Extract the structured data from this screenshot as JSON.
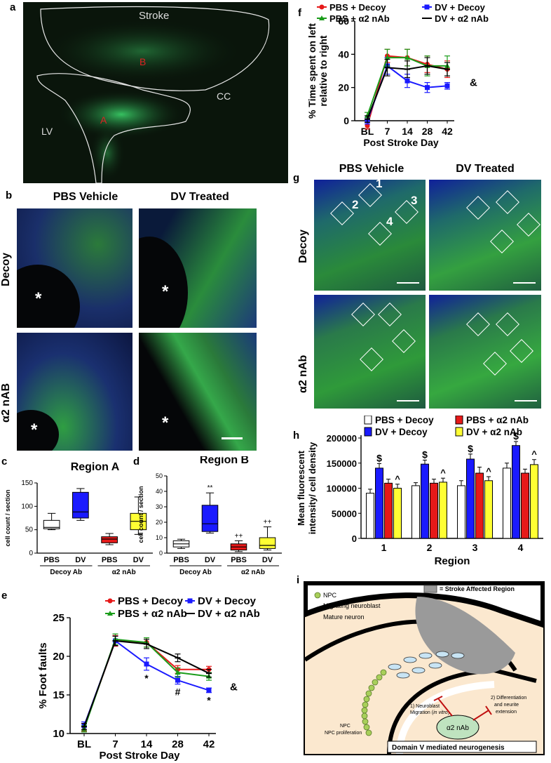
{
  "panel_labels": {
    "a": "a",
    "b": "b",
    "c": "c",
    "d": "d",
    "e": "e",
    "f": "f",
    "g": "g",
    "h": "h",
    "i": "i"
  },
  "panel_a": {
    "stroke": "Stroke",
    "region_a": "A",
    "region_b": "B",
    "cc": "CC",
    "lv": "LV"
  },
  "panel_b": {
    "col1": "PBS Vehicle",
    "col2": "DV Treated",
    "row1": "Decoy",
    "row2": "α2 nAB",
    "asterisk": "*"
  },
  "panel_g": {
    "col1": "PBS Vehicle",
    "col2": "DV Treated",
    "row1": "Decoy",
    "row2": "α2 nAb",
    "regions": [
      "1",
      "2",
      "3",
      "4"
    ]
  },
  "chart_data": [
    {
      "id": "c",
      "type": "box",
      "title": "Region A",
      "ylabel": "cell count / section",
      "ylim": [
        0,
        150
      ],
      "yticks": [
        0,
        50,
        100,
        150
      ],
      "categories": [
        "PBS",
        "DV",
        "PBS",
        "DV"
      ],
      "groups": [
        {
          "label": "Decoy Ab",
          "span": [
            0,
            1
          ]
        },
        {
          "label": "α2 nAb",
          "span": [
            2,
            3
          ]
        }
      ],
      "boxes": [
        {
          "min": 50,
          "q1": 52,
          "median": 55,
          "q3": 70,
          "max": 85,
          "color": "#ffffff"
        },
        {
          "min": 70,
          "q1": 75,
          "median": 88,
          "q3": 130,
          "max": 138,
          "color": "#1a1aff"
        },
        {
          "min": 18,
          "q1": 22,
          "median": 30,
          "q3": 35,
          "max": 42,
          "color": "#e61919"
        },
        {
          "min": 40,
          "q1": 50,
          "median": 68,
          "q3": 85,
          "max": 120,
          "color": "#ffff33"
        }
      ],
      "annotations": [
        "",
        "",
        "",
        ""
      ]
    },
    {
      "id": "d",
      "type": "box",
      "title": "Region B",
      "ylabel": "cell count / section",
      "ylim": [
        0,
        50
      ],
      "yticks": [
        0,
        10,
        20,
        30,
        40,
        50
      ],
      "categories": [
        "PBS",
        "DV",
        "PBS",
        "DV"
      ],
      "groups": [
        {
          "label": "Decoy Ab",
          "span": [
            0,
            1
          ]
        },
        {
          "label": "α2 nAb",
          "span": [
            2,
            3
          ]
        }
      ],
      "boxes": [
        {
          "min": 3,
          "q1": 4,
          "median": 6,
          "q3": 8,
          "max": 9,
          "color": "#ffffff"
        },
        {
          "min": 13,
          "q1": 14,
          "median": 19,
          "q3": 31,
          "max": 39,
          "color": "#1a1aff"
        },
        {
          "min": 1,
          "q1": 2,
          "median": 4,
          "q3": 6,
          "max": 8,
          "color": "#e61919"
        },
        {
          "min": 2,
          "q1": 3,
          "median": 5,
          "q3": 10,
          "max": 17,
          "color": "#ffff33"
        }
      ],
      "annotations": [
        "",
        "**",
        "++",
        "++"
      ]
    },
    {
      "id": "e",
      "type": "line",
      "xlabel": "Post Stroke Day",
      "ylabel": "% Foot faults",
      "x": [
        "BL",
        "7",
        "14",
        "28",
        "42"
      ],
      "ylim": [
        10,
        25
      ],
      "yticks": [
        10,
        15,
        20,
        25
      ],
      "series": [
        {
          "name": "PBS + Decoy",
          "color": "#e61919",
          "values": [
            10.8,
            22.0,
            21.8,
            18.3,
            18.3
          ],
          "err": [
            0.5,
            0.7,
            0.6,
            0.5,
            0.4
          ]
        },
        {
          "name": "DV + Decoy",
          "color": "#1a1aff",
          "values": [
            11.0,
            22.0,
            19.0,
            16.9,
            15.6
          ],
          "err": [
            0.5,
            0.6,
            0.8,
            0.5,
            0.3
          ]
        },
        {
          "name": "PBS + α2 nAb",
          "color": "#1a9c1a",
          "values": [
            10.6,
            22.2,
            21.8,
            17.9,
            17.4
          ],
          "err": [
            0.4,
            0.7,
            0.6,
            0.6,
            0.5
          ]
        },
        {
          "name": "DV + α2 nAb",
          "color": "#000000",
          "values": [
            10.9,
            22.0,
            21.6,
            19.8,
            17.8
          ],
          "err": [
            0.4,
            0.6,
            0.6,
            0.5,
            0.5
          ]
        }
      ],
      "annotations": [
        {
          "x": "14",
          "text": "*"
        },
        {
          "x": "28",
          "text": "#"
        },
        {
          "x": "42",
          "text": "*"
        }
      ],
      "side_annotation": "&"
    },
    {
      "id": "f",
      "type": "line",
      "xlabel": "Post Stroke Day",
      "ylabel": "% Time spent on left relative to right",
      "ylabel_lines": [
        "% Time spent on left",
        "relative to right"
      ],
      "x": [
        "BL",
        "7",
        "14",
        "28",
        "42"
      ],
      "ylim": [
        0,
        60
      ],
      "yticks": [
        0,
        20,
        40,
        60
      ],
      "series": [
        {
          "name": "PBS + Decoy",
          "color": "#e61919",
          "values": [
            -3,
            39,
            38,
            34,
            31
          ],
          "err": [
            2,
            4,
            5,
            5,
            5
          ]
        },
        {
          "name": "DV + Decoy",
          "color": "#1a1aff",
          "values": [
            0,
            33,
            24,
            20,
            21
          ],
          "err": [
            2,
            5,
            4,
            3,
            2
          ]
        },
        {
          "name": "PBS + α2 nAb",
          "color": "#1a9c1a",
          "values": [
            3,
            38,
            38,
            33,
            33
          ],
          "err": [
            2,
            5,
            5,
            6,
            6
          ]
        },
        {
          "name": "DV + α2 nAb",
          "color": "#000000",
          "values": [
            1,
            32,
            31,
            33,
            31
          ],
          "err": [
            2,
            5,
            5,
            5,
            4
          ]
        }
      ],
      "side_annotation": "&"
    },
    {
      "id": "h",
      "type": "bar",
      "xlabel": "Region",
      "ylabel": "Mean fluorescent intensity/ cell density",
      "ylabel_lines": [
        "Mean fluorescent",
        "intensity/ cell density"
      ],
      "categories": [
        "1",
        "2",
        "3",
        "4"
      ],
      "ylim": [
        0,
        200000
      ],
      "ytick_labels": [
        "0",
        "50000",
        "100000",
        "150000",
        "200000"
      ],
      "yticks": [
        0,
        50000,
        100000,
        150000,
        200000
      ],
      "series": [
        {
          "name": "PBS + Decoy",
          "color": "#ffffff",
          "values": [
            90000,
            105000,
            105000,
            140000
          ],
          "err": [
            8000,
            6000,
            10000,
            10000
          ],
          "marks": [
            "",
            "",
            "",
            ""
          ]
        },
        {
          "name": "DV + Decoy",
          "color": "#1a1aff",
          "values": [
            140000,
            148000,
            158000,
            185000
          ],
          "err": [
            9000,
            8000,
            10000,
            8000
          ],
          "marks": [
            "$",
            "$",
            "$",
            "$"
          ]
        },
        {
          "name": "PBS + α2 nAb",
          "color": "#e61919",
          "values": [
            110000,
            110000,
            130000,
            130000
          ],
          "err": [
            8000,
            8000,
            12000,
            8000
          ],
          "marks": [
            "",
            "",
            "",
            ""
          ]
        },
        {
          "name": "DV + α2 nAb",
          "color": "#ffff33",
          "values": [
            100000,
            112000,
            115000,
            147000
          ],
          "err": [
            8000,
            8000,
            8000,
            10000
          ],
          "marks": [
            "^",
            "^",
            "^",
            "^"
          ]
        }
      ]
    }
  ],
  "panel_i": {
    "legend_box": "= Stroke Affected Region",
    "npc": "NPC",
    "migrating": "Migrating neuroblast",
    "mature": "Mature neuron",
    "npc_prolif": "NPC proliferation",
    "migration": "1) Neuroblast Migration (in vitro)",
    "migration_l1": "1) Neuroblast",
    "migration_l2a": "Migration (",
    "migration_l2b": "in vitro",
    "migration_l2c": ")",
    "diff_l1": "2) Differentiation",
    "diff_l2": "and neurite",
    "diff_l3": "extension",
    "antibody": "α2 nAb",
    "footer": "Domain V mediated neurogenesis"
  }
}
